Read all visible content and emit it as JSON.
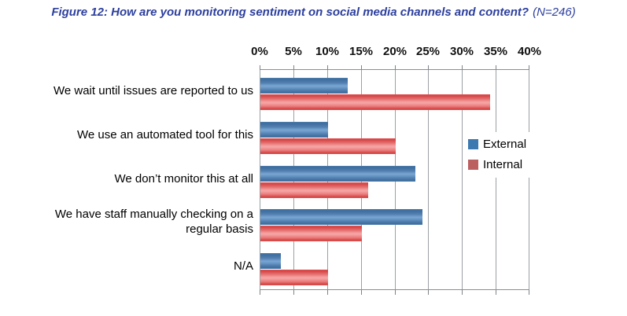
{
  "title": {
    "main": "Figure 12: How are you monitoring sentiment on social media channels and content?",
    "sample_size": "(N=246)"
  },
  "chart_data": {
    "type": "bar",
    "orientation": "horizontal",
    "title": "How are you monitoring sentiment on social media channels and content?",
    "sample_size_note": "N=246",
    "categories": [
      "We wait until issues are reported to us",
      "We use an automated tool for this",
      "We don’t monitor this at all",
      "We have staff manually checking on a\nregular basis",
      "N/A"
    ],
    "series": [
      {
        "name": "External",
        "color": "#3c79b0",
        "values": [
          13,
          10,
          23,
          24,
          3
        ]
      },
      {
        "name": "Internal",
        "color": "#bc5f5f",
        "values": [
          34,
          20,
          16,
          15,
          10
        ]
      }
    ],
    "x_axis": {
      "position": "top",
      "min": 0,
      "max": 40,
      "tick_step": 5,
      "ticks": [
        "0%",
        "5%",
        "10%",
        "15%",
        "20%",
        "25%",
        "30%",
        "35%",
        "40%"
      ],
      "unit": "%"
    },
    "legend": {
      "position": "right",
      "entries": [
        "External",
        "Internal"
      ]
    },
    "grid": true,
    "colors": {
      "title_text": "#2c3f9e",
      "gridline": "#9aa0a3",
      "external_bar": "#4f81bd",
      "internal_bar": "#e56a6a"
    }
  }
}
